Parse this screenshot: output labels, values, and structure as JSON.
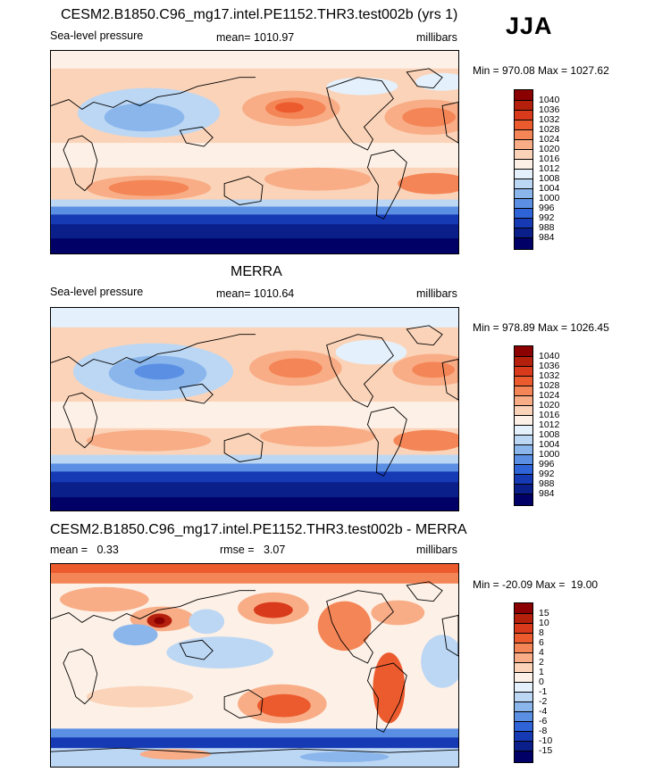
{
  "season": "JJA",
  "panels": [
    {
      "title": "CESM2.B1850.C96_mg17.intel.PE1152.THR3.test002b (yrs 1)",
      "left_label": "Sea-level pressure",
      "center_label": "mean= 1010.97",
      "right_label": "millibars",
      "minmax": "Min = 970.08 Max = 1027.62",
      "colorbar": {
        "labels": [
          "1040",
          "1036",
          "1032",
          "1028",
          "1024",
          "1020",
          "1016",
          "1012",
          "1008",
          "1004",
          "1000",
          "996",
          "992",
          "988",
          "984"
        ],
        "colors": [
          "#8b0000",
          "#b5200d",
          "#d83a1b",
          "#ec5b2e",
          "#f48556",
          "#f8ad86",
          "#fbd3b8",
          "#fdf0e6",
          "#e4f0fb",
          "#bcd7f4",
          "#8ab6ec",
          "#5a8fe4",
          "#2f63d8",
          "#1639b4",
          "#0a1f8a",
          "#000066"
        ]
      }
    },
    {
      "title": "MERRA",
      "left_label": "Sea-level pressure",
      "center_label": "mean= 1010.64",
      "right_label": "millibars",
      "minmax": "Min = 978.89 Max = 1026.45",
      "colorbar": {
        "labels": [
          "1040",
          "1036",
          "1032",
          "1028",
          "1024",
          "1020",
          "1016",
          "1012",
          "1008",
          "1004",
          "1000",
          "996",
          "992",
          "988",
          "984"
        ],
        "colors": [
          "#8b0000",
          "#b5200d",
          "#d83a1b",
          "#ec5b2e",
          "#f48556",
          "#f8ad86",
          "#fbd3b8",
          "#fdf0e6",
          "#e4f0fb",
          "#bcd7f4",
          "#8ab6ec",
          "#5a8fe4",
          "#2f63d8",
          "#1639b4",
          "#0a1f8a",
          "#000066"
        ]
      }
    },
    {
      "title": "CESM2.B1850.C96_mg17.intel.PE1152.THR3.test002b - MERRA",
      "left_label": "mean =   0.33",
      "center_label": "rmse =   3.07",
      "right_label": "millibars",
      "minmax": "Min = -20.09 Max =  19.00",
      "colorbar": {
        "labels": [
          "15",
          "10",
          "8",
          "6",
          "4",
          "2",
          "1",
          "0",
          "-1",
          "-2",
          "-4",
          "-6",
          "-8",
          "-10",
          "-15"
        ],
        "colors": [
          "#8b0000",
          "#b5200d",
          "#d83a1b",
          "#ec5b2e",
          "#f48556",
          "#f8ad86",
          "#fbd3b8",
          "#fdf0e6",
          "#e4f0fb",
          "#bcd7f4",
          "#8ab6ec",
          "#5a8fe4",
          "#2f63d8",
          "#1639b4",
          "#0a1f8a",
          "#000066"
        ]
      }
    }
  ]
}
